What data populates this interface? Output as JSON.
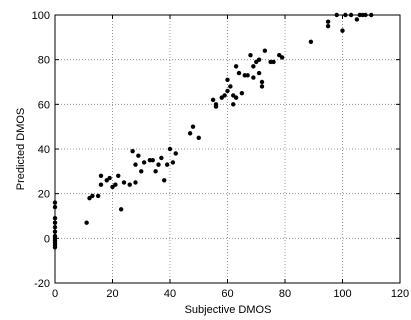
{
  "chart_data": {
    "type": "scatter",
    "xlabel": "Subjective DMOS",
    "ylabel": "Predicted DMOS",
    "xlim": [
      0,
      120
    ],
    "ylim": [
      -20,
      100
    ],
    "xticks": [
      0,
      20,
      40,
      60,
      80,
      100,
      120
    ],
    "yticks": [
      -20,
      0,
      20,
      40,
      60,
      80,
      100
    ],
    "grid": true,
    "marker_color": "#000000",
    "points": [
      [
        0,
        16
      ],
      [
        0,
        14
      ],
      [
        0,
        9
      ],
      [
        0,
        7
      ],
      [
        0,
        5
      ],
      [
        0,
        3
      ],
      [
        0,
        1
      ],
      [
        0,
        0
      ],
      [
        0,
        -1
      ],
      [
        0,
        -2
      ],
      [
        0,
        -3
      ],
      [
        0,
        -4
      ],
      [
        11,
        7
      ],
      [
        12,
        18
      ],
      [
        13,
        19
      ],
      [
        15,
        19
      ],
      [
        16,
        24
      ],
      [
        16,
        28
      ],
      [
        18,
        26
      ],
      [
        19,
        27
      ],
      [
        20,
        23
      ],
      [
        21,
        24
      ],
      [
        22,
        28
      ],
      [
        23,
        13
      ],
      [
        24,
        25
      ],
      [
        26,
        24
      ],
      [
        27,
        39
      ],
      [
        28,
        25
      ],
      [
        28,
        33
      ],
      [
        29,
        37
      ],
      [
        30,
        30
      ],
      [
        31,
        34
      ],
      [
        33,
        35
      ],
      [
        34,
        35
      ],
      [
        35,
        30
      ],
      [
        36,
        33
      ],
      [
        37,
        36
      ],
      [
        38,
        26
      ],
      [
        39,
        33
      ],
      [
        40,
        40
      ],
      [
        41,
        34
      ],
      [
        42,
        38
      ],
      [
        47,
        47
      ],
      [
        48,
        50
      ],
      [
        50,
        45
      ],
      [
        55,
        62
      ],
      [
        56,
        60
      ],
      [
        56,
        59
      ],
      [
        58,
        63
      ],
      [
        59,
        64
      ],
      [
        60,
        66
      ],
      [
        60,
        71
      ],
      [
        61,
        68
      ],
      [
        62,
        64
      ],
      [
        62,
        60
      ],
      [
        63,
        63
      ],
      [
        63,
        77
      ],
      [
        64,
        74
      ],
      [
        65,
        65
      ],
      [
        66,
        73
      ],
      [
        67,
        73
      ],
      [
        68,
        82
      ],
      [
        69,
        72
      ],
      [
        69,
        77
      ],
      [
        70,
        79
      ],
      [
        71,
        74
      ],
      [
        71,
        80
      ],
      [
        72,
        70
      ],
      [
        72,
        68
      ],
      [
        73,
        84
      ],
      [
        75,
        79
      ],
      [
        76,
        79
      ],
      [
        78,
        82
      ],
      [
        79,
        81
      ],
      [
        89,
        88
      ],
      [
        95,
        95
      ],
      [
        95,
        97
      ],
      [
        98,
        100
      ],
      [
        100,
        93
      ],
      [
        101,
        100
      ],
      [
        103,
        100
      ],
      [
        105,
        98
      ],
      [
        106,
        100
      ],
      [
        107,
        100
      ],
      [
        108,
        100
      ],
      [
        110,
        100
      ]
    ]
  }
}
